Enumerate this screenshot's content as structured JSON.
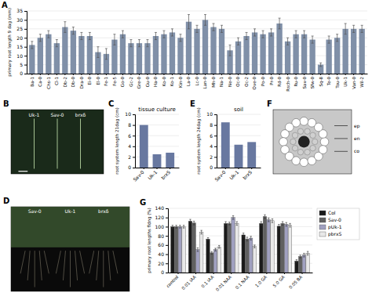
{
  "chart_data": [
    {
      "type": "bar",
      "annotations": [
        "A"
      ],
      "ylabel": "primary root length 9 dag (mm)",
      "categories": [
        "Ba-1",
        "Ca-0",
        "Chs-1",
        "Cl-1",
        "Db-2",
        "Db-0",
        "Dra-0",
        "Ei-0",
        "El-0",
        "Fe-1",
        "Fe-5",
        "Go-0",
        "Gc-2",
        "Gre-0",
        "Gu-0",
        "Ha-0",
        "Ko-0",
        "Ko-1",
        "Kin-0",
        "La-0",
        "Lc-0",
        "Lan-0",
        "Mh-0",
        "Na-1",
        "Ne-0",
        "Oc-0",
        "Oc-2",
        "Ove-0",
        "Po-0",
        "Pr-0",
        "Rd-0",
        "Rsch-0",
        "Ru-0",
        "Sav-0",
        "Sfw-0",
        "Sq-8",
        "Te-0",
        "Tou-0",
        "Uk-1",
        "Van-0",
        "Wil-2"
      ],
      "values": [
        16,
        20,
        22,
        17,
        26,
        24,
        21,
        21,
        12,
        11,
        19,
        22,
        17,
        17,
        17,
        21,
        22,
        23,
        20,
        29,
        25,
        30,
        26,
        25,
        13,
        18,
        21,
        23,
        22,
        23,
        28,
        18,
        22,
        22,
        19,
        5,
        19,
        20,
        25,
        25,
        25
      ],
      "errors": [
        2,
        2,
        2,
        2,
        3,
        2,
        2,
        2,
        3,
        3,
        3,
        2,
        2,
        2,
        2,
        2,
        2,
        2,
        2,
        4,
        2,
        3,
        2,
        2,
        3,
        2,
        2,
        2,
        2,
        2,
        3,
        2,
        2,
        2,
        2,
        1,
        2,
        2,
        3,
        2,
        2
      ],
      "color": "#8090a8",
      "ylim": [
        0,
        35
      ],
      "yticks": [
        0,
        5,
        10,
        15,
        20,
        25,
        30,
        35
      ],
      "grid": true
    },
    {
      "type": "schematic",
      "annotations": [
        "B",
        "Uk-1",
        "Sav-0",
        "brxδ"
      ]
    },
    {
      "type": "bar",
      "annotations": [
        "C"
      ],
      "title": "tissue culture",
      "ylabel": "root system length 21dag (cm)",
      "categories": [
        "Sav-0",
        "Uk-1",
        "brxS"
      ],
      "values": [
        8.0,
        2.5,
        2.8
      ],
      "color": "#6878a0",
      "ylim": [
        0,
        10
      ],
      "yticks": [
        0,
        2,
        4,
        6,
        8,
        10
      ],
      "grid": true
    },
    {
      "type": "bar",
      "annotations": [
        "E"
      ],
      "title": "soil",
      "ylabel": "root system length 24dag (cm)",
      "categories": [
        "Sav-0",
        "Uk-1",
        "brxS"
      ],
      "values": [
        8.5,
        4.3,
        4.8
      ],
      "color": "#6878a0",
      "ylim": [
        0,
        10
      ],
      "yticks": [
        0,
        2,
        4,
        6,
        8,
        10
      ],
      "grid": true
    },
    {
      "type": "schematic",
      "annotations": [
        "F",
        "ep",
        "en",
        "co"
      ]
    },
    {
      "type": "schematic",
      "annotations": [
        "D",
        "Sav-0",
        "Uk-1",
        "brxδ"
      ]
    },
    {
      "type": "bar",
      "annotations": [
        "G"
      ],
      "ylabel": "primary root lengths fldng (%)",
      "categories": [
        "control",
        "0.01 IAA",
        "0.1 IAA",
        "0.01 NAA",
        "0.1 NAA",
        "1.0 GA",
        "5.0 GA",
        "0.05 BA"
      ],
      "series": [
        {
          "name": "Col",
          "color": "#1a1a1a",
          "values": [
            100,
            112,
            73,
            107,
            82,
            107,
            101,
            25
          ],
          "errors": [
            3,
            4,
            3,
            4,
            4,
            4,
            4,
            3
          ]
        },
        {
          "name": "Sav-0",
          "color": "#606060",
          "values": [
            100,
            108,
            43,
            107,
            73,
            122,
            107,
            35
          ],
          "errors": [
            3,
            4,
            3,
            3,
            4,
            4,
            4,
            3
          ]
        },
        {
          "name": "pUk-1",
          "color": "#a0a0c0",
          "values": [
            100,
            50,
            50,
            120,
            75,
            115,
            105,
            38
          ],
          "errors": [
            3,
            4,
            3,
            4,
            4,
            4,
            4,
            4
          ]
        },
        {
          "name": "pbrxS",
          "color": "#e8e8e8",
          "values": [
            100,
            88,
            56,
            107,
            57,
            113,
            103,
            42
          ],
          "errors": [
            3,
            4,
            3,
            4,
            3,
            4,
            4,
            4
          ]
        }
      ],
      "ylim": [
        0,
        140
      ],
      "yticks": [
        0,
        20,
        40,
        60,
        80,
        100,
        120,
        140
      ],
      "grid": true,
      "legend": "upper right"
    }
  ]
}
